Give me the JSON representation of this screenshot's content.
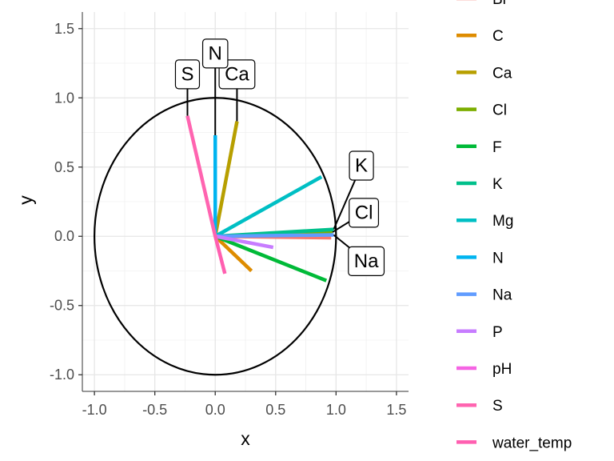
{
  "chart_data": {
    "type": "line",
    "title": "",
    "xlabel": "x",
    "ylabel": "y",
    "xlim": [
      -1.1,
      1.6
    ],
    "ylim": [
      -1.12,
      1.62
    ],
    "x_ticks": [
      -1.0,
      -0.5,
      0.0,
      0.5,
      1.0,
      1.5
    ],
    "x_tick_labels": [
      "-1.0",
      "-0.5",
      "0.0",
      "0.5",
      "1.0",
      "1.5"
    ],
    "y_ticks": [
      -1.0,
      -0.5,
      0.0,
      0.5,
      1.0,
      1.5
    ],
    "y_tick_labels": [
      "-1.0",
      "-0.5",
      "0.0",
      "0.5",
      "1.0",
      "1.5"
    ],
    "grid": true,
    "legend_position": "right",
    "circle": {
      "center": [
        0,
        0
      ],
      "radius": 1
    },
    "series": [
      {
        "name": "Br",
        "color": "#F8766D",
        "x": 0.96,
        "y": -0.01,
        "label": ""
      },
      {
        "name": "C",
        "color": "#DE8C00",
        "x": 0.3,
        "y": -0.25,
        "label": ""
      },
      {
        "name": "Ca",
        "color": "#B79F00",
        "x": 0.18,
        "y": 0.83,
        "label": "Ca",
        "label_x": 0.18,
        "label_y": 1.17
      },
      {
        "name": "Cl",
        "color": "#7CAE00",
        "x": 0.97,
        "y": 0.03,
        "label": "Cl",
        "label_x": 1.23,
        "label_y": 0.17
      },
      {
        "name": "F",
        "color": "#00BA38",
        "x": 0.92,
        "y": -0.32,
        "label": ""
      },
      {
        "name": "K",
        "color": "#00C08B",
        "x": 0.98,
        "y": 0.05,
        "label": "K",
        "label_x": 1.21,
        "label_y": 0.51
      },
      {
        "name": "Mg",
        "color": "#00BFC4",
        "x": 0.88,
        "y": 0.43,
        "label": ""
      },
      {
        "name": "N",
        "color": "#00B4F0",
        "x": 0.0,
        "y": 0.73,
        "label": "N",
        "label_x": 0.0,
        "label_y": 1.32
      },
      {
        "name": "Na",
        "color": "#619CFF",
        "x": 0.98,
        "y": 0.01,
        "label": "Na",
        "label_x": 1.25,
        "label_y": -0.18
      },
      {
        "name": "P",
        "color": "#C77CFF",
        "x": 0.48,
        "y": -0.08,
        "label": ""
      },
      {
        "name": "pH",
        "color": "#F564E3",
        "x": 0.0,
        "y": 0.0,
        "label": ""
      },
      {
        "name": "S",
        "color": "#FF64B0",
        "x": -0.23,
        "y": 0.87,
        "label": "S",
        "label_x": -0.23,
        "label_y": 1.17
      },
      {
        "name": "water_temp",
        "color": "#FF5FB0",
        "x": 0.08,
        "y": -0.27,
        "label": ""
      }
    ]
  }
}
